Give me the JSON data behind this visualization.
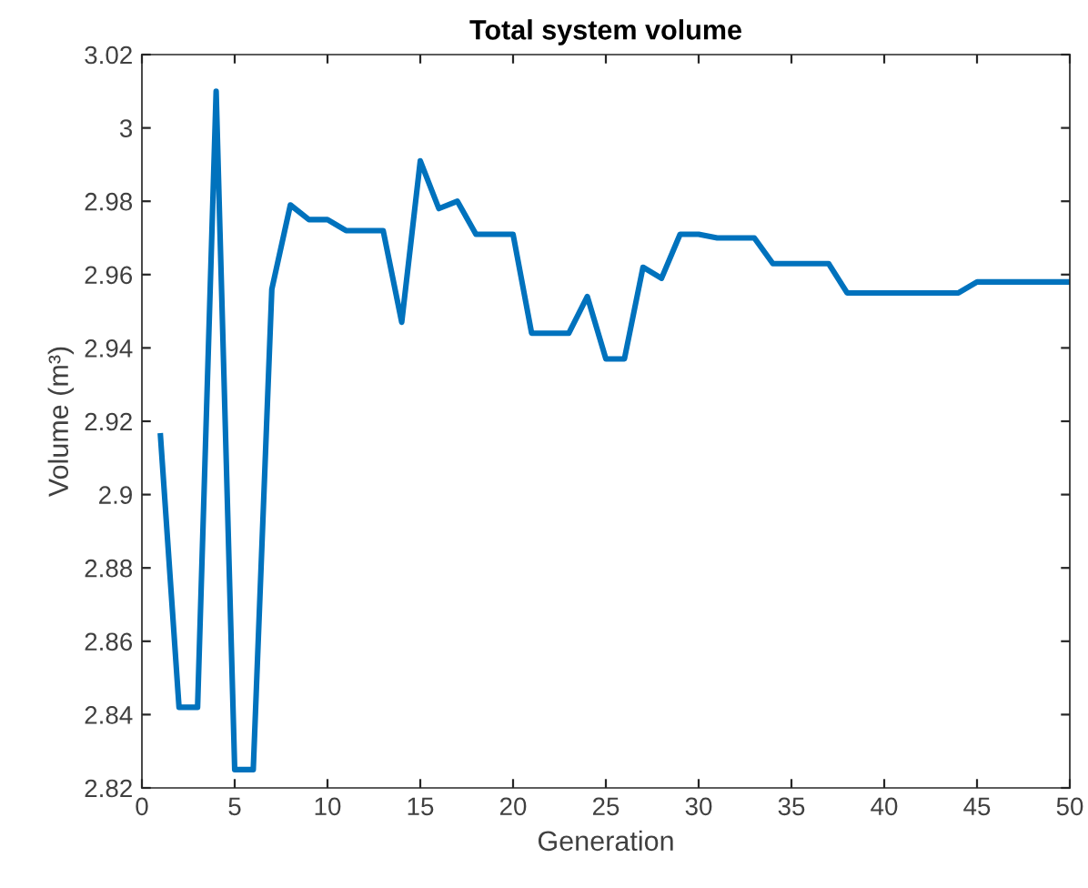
{
  "chart_data": {
    "type": "line",
    "title": "Total system volume",
    "xlabel": "Generation",
    "ylabel": "Volume (m³)",
    "x": [
      1,
      2,
      3,
      4,
      5,
      6,
      7,
      8,
      9,
      10,
      11,
      12,
      13,
      14,
      15,
      16,
      17,
      18,
      19,
      20,
      21,
      22,
      23,
      24,
      25,
      26,
      27,
      28,
      29,
      30,
      31,
      32,
      33,
      34,
      35,
      36,
      37,
      38,
      39,
      40,
      41,
      42,
      43,
      44,
      45,
      46,
      47,
      48,
      49,
      50
    ],
    "series": [
      {
        "color": "#0072bd",
        "values": [
          2.916,
          2.842,
          2.842,
          3.01,
          2.825,
          2.825,
          2.956,
          2.979,
          2.975,
          2.975,
          2.972,
          2.972,
          2.972,
          2.947,
          2.991,
          2.978,
          2.98,
          2.971,
          2.971,
          2.971,
          2.944,
          2.944,
          2.944,
          2.954,
          2.937,
          2.937,
          2.962,
          2.959,
          2.971,
          2.971,
          2.97,
          2.97,
          2.97,
          2.963,
          2.963,
          2.963,
          2.963,
          2.955,
          2.955,
          2.955,
          2.955,
          2.955,
          2.955,
          2.955,
          2.958,
          2.958,
          2.958,
          2.958,
          2.958,
          2.958
        ]
      }
    ],
    "xlim": [
      0,
      50
    ],
    "xticks": [
      0,
      5,
      10,
      15,
      20,
      25,
      30,
      35,
      40,
      45,
      50
    ],
    "ylim": [
      2.82,
      3.02
    ],
    "yticks": [
      2.82,
      2.84,
      2.86,
      2.88,
      2.9,
      2.92,
      2.94,
      2.96,
      2.98,
      3,
      3.02
    ],
    "grid": false,
    "legend": false,
    "marker": "none",
    "line_style": "solid"
  }
}
